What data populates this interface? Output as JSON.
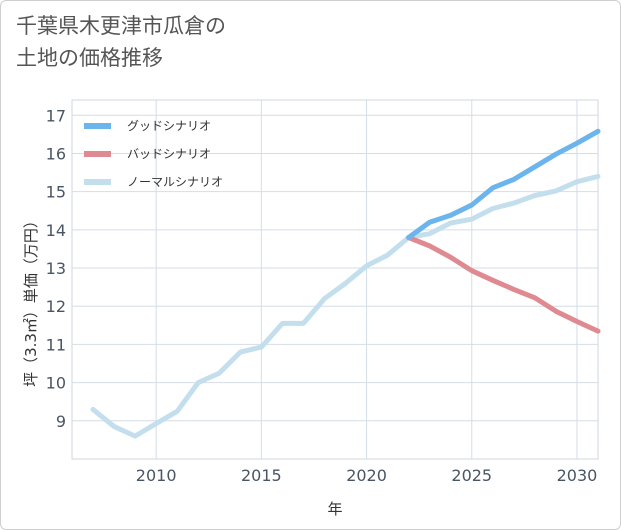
{
  "chart_data": {
    "type": "line",
    "title_lines": [
      "千葉県木更津市瓜倉の",
      "土地の価格推移"
    ],
    "xlabel": "年",
    "ylabel": "坪（3.3㎡）単価（万円）",
    "xlim": [
      2006,
      2031
    ],
    "ylim": [
      8,
      17.4
    ],
    "xticks": [
      2010,
      2015,
      2020,
      2025,
      2030
    ],
    "yticks": [
      9,
      10,
      11,
      12,
      13,
      14,
      15,
      16,
      17
    ],
    "series": [
      {
        "name": "グッドシナリオ",
        "color": "#6cb4ec",
        "x": [
          2022,
          2023,
          2024,
          2025,
          2026,
          2027,
          2028,
          2029,
          2030,
          2031
        ],
        "y": [
          13.8,
          14.2,
          14.38,
          14.65,
          15.1,
          15.32,
          15.65,
          15.98,
          16.27,
          16.58
        ]
      },
      {
        "name": "バッドシナリオ",
        "color": "#df8991",
        "x": [
          2022,
          2023,
          2024,
          2025,
          2026,
          2027,
          2028,
          2029,
          2030,
          2031
        ],
        "y": [
          13.8,
          13.58,
          13.28,
          12.93,
          12.68,
          12.44,
          12.22,
          11.87,
          11.6,
          11.35
        ]
      },
      {
        "name": "ノーマルシナリオ",
        "color": "#c3dfee",
        "x": [
          2007,
          2008,
          2009,
          2010,
          2011,
          2012,
          2013,
          2014,
          2015,
          2016,
          2017,
          2018,
          2019,
          2020,
          2021,
          2022,
          2023,
          2024,
          2025,
          2026,
          2027,
          2028,
          2029,
          2030,
          2031
        ],
        "y": [
          9.3,
          8.85,
          8.6,
          8.93,
          9.25,
          10.0,
          10.25,
          10.8,
          10.93,
          11.55,
          11.55,
          12.2,
          12.6,
          13.06,
          13.34,
          13.8,
          13.9,
          14.18,
          14.28,
          14.56,
          14.7,
          14.9,
          15.02,
          15.26,
          15.4
        ]
      }
    ]
  }
}
